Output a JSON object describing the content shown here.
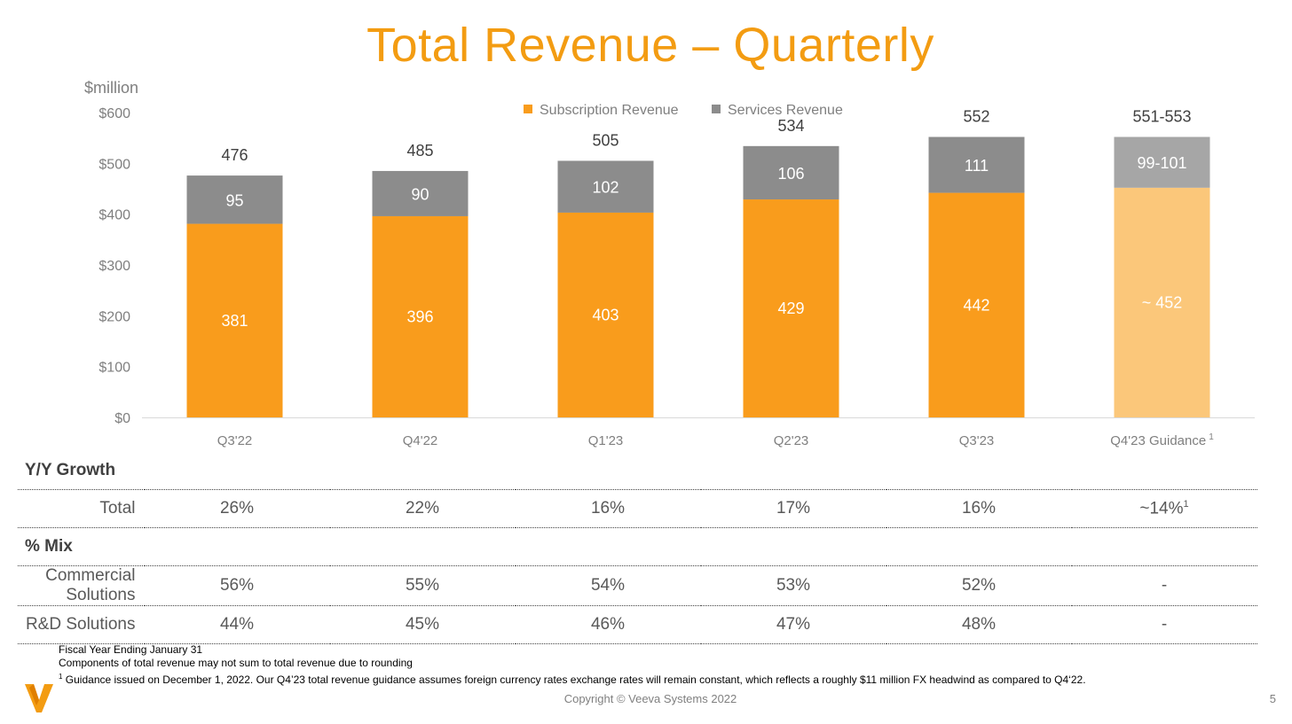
{
  "title": "Total Revenue – Quarterly",
  "chart_data": {
    "type": "bar",
    "stacked": true,
    "ylabel": "$million",
    "ylim": [
      0,
      600
    ],
    "yticks": [
      "$0",
      "$100",
      "$200",
      "$300",
      "$400",
      "$500",
      "$600"
    ],
    "categories": [
      "Q3'22",
      "Q4'22",
      "Q1'23",
      "Q2'23",
      "Q3'23",
      "Q4'23 Guidance"
    ],
    "category_sup": [
      "",
      "",
      "",
      "",
      "",
      "1"
    ],
    "series": [
      {
        "name": "Subscription Revenue",
        "color": "#F99C1C",
        "guidance_color": "#FBC77A",
        "values": [
          381,
          396,
          403,
          429,
          442,
          452
        ],
        "labels": [
          "381",
          "396",
          "403",
          "429",
          "442",
          "~ 452"
        ]
      },
      {
        "name": "Services Revenue",
        "color": "#8C8C8C",
        "guidance_color": "#A6A6A6",
        "values": [
          95,
          90,
          102,
          106,
          111,
          100
        ],
        "labels": [
          "95",
          "90",
          "102",
          "106",
          "111",
          "99-101"
        ]
      }
    ],
    "totals": [
      "476",
      "485",
      "505",
      "534",
      "552",
      "551-553"
    ],
    "total_values": [
      476,
      485,
      505,
      534,
      552,
      552
    ],
    "legend_position": "top-center",
    "grid": false
  },
  "table": {
    "yy_growth_label": "Y/Y Growth",
    "total_label": "Total",
    "total_values": [
      "26%",
      "22%",
      "16%",
      "17%",
      "16%",
      "~14%"
    ],
    "total_last_sup": "1",
    "mix_label": "% Mix",
    "commercial_label": "Commercial Solutions",
    "commercial_values": [
      "56%",
      "55%",
      "54%",
      "53%",
      "52%",
      "-"
    ],
    "rd_label": "R&D Solutions",
    "rd_values": [
      "44%",
      "45%",
      "46%",
      "47%",
      "48%",
      "-"
    ]
  },
  "footnotes": {
    "line1": "Fiscal Year Ending January 31",
    "line2": "Components of total revenue may not sum to total revenue due to rounding",
    "line3_sup": "1",
    "line3": "Guidance issued on December 1, 2022. Our Q4’23 total revenue guidance assumes foreign currency rates exchange rates will remain constant, which reflects a roughly $11 million FX headwind as compared to Q4‘22."
  },
  "copyright": "Copyright © Veeva Systems 2022",
  "page_number": "5",
  "colors": {
    "title": "#F39C12",
    "logo": "#F39C12"
  }
}
